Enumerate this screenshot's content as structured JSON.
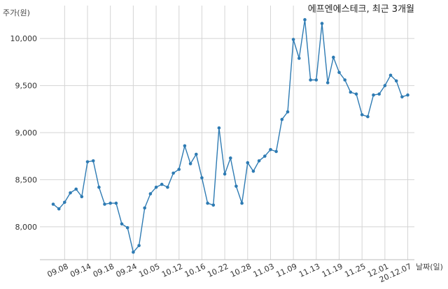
{
  "chart_data": {
    "type": "line",
    "title": "에프엔에스테크, 최근 3개월",
    "ylabel": "주가(원)",
    "xlabel": "날짜(일)",
    "ylim": [
      7650,
      10350
    ],
    "yticks": [
      8000,
      8500,
      9000,
      9500,
      10000
    ],
    "ytick_labels": [
      "8,000",
      "8,500",
      "9,000",
      "9,500",
      "10,000"
    ],
    "xtick_labels": [
      "09.08",
      "09.14",
      "09.18",
      "09.24",
      "10.05",
      "10.12",
      "10.16",
      "10.22",
      "10.28",
      "11.03",
      "11.09",
      "11.13",
      "11.19",
      "11.25",
      "12.01",
      "20.12.07"
    ],
    "xtick_index": [
      2,
      6,
      10,
      14,
      18,
      22,
      26,
      30,
      34,
      38,
      42,
      46,
      50,
      54,
      58,
      62
    ],
    "grid": true,
    "line_color": "#2e7bb3",
    "series": [
      {
        "values": [
          8240,
          8190,
          8260,
          8360,
          8400,
          8320,
          8690,
          8700,
          8420,
          8240,
          8250,
          8250,
          8030,
          7990,
          7730,
          7800,
          8200,
          8350,
          8420,
          8450,
          8420,
          8570,
          8610,
          8860,
          8670,
          8770,
          8520,
          8250,
          8230,
          9050,
          8560,
          8730,
          8430,
          8250,
          8680,
          8590,
          8700,
          8750,
          8820,
          8800,
          9140,
          9220,
          9990,
          9790,
          10200,
          9560,
          9560,
          10160,
          9530,
          9800,
          9640,
          9560,
          9430,
          9410,
          9190,
          9170,
          9400,
          9410,
          9500,
          9610,
          9550,
          9380,
          9400
        ]
      }
    ]
  }
}
